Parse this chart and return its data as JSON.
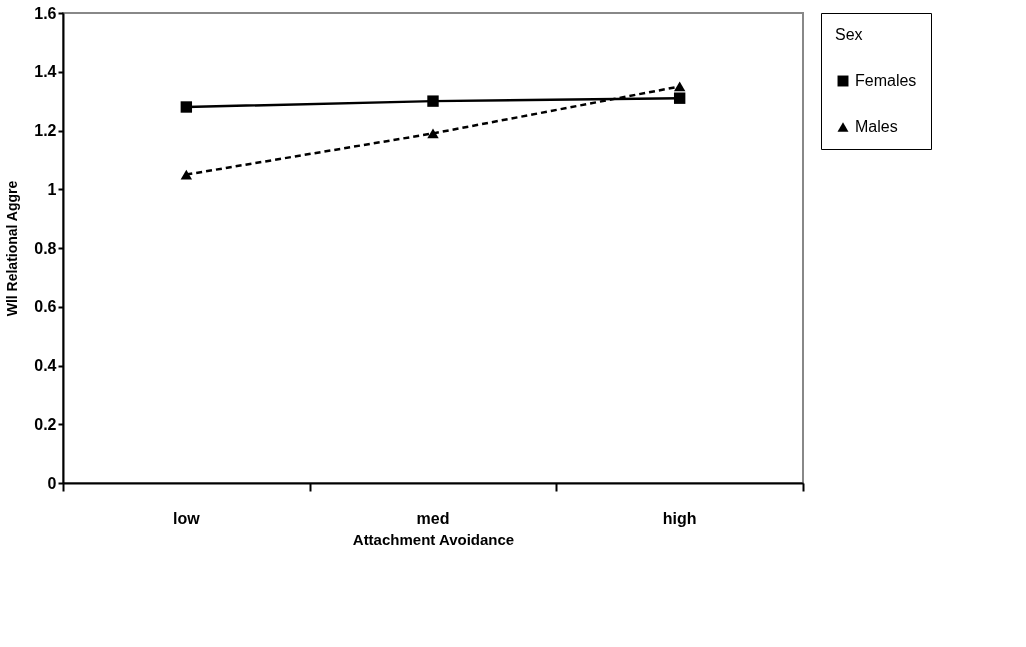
{
  "chart_data": {
    "type": "line",
    "xlabel": "Attachment Avoidance",
    "ylabel": "Wll Relational Aggre",
    "legend_title": "Sex",
    "categories": [
      "low",
      "med",
      "high"
    ],
    "series": [
      {
        "name": "Females",
        "color": "#000000",
        "values": [
          1.28,
          1.3,
          1.31
        ],
        "marker": "square",
        "line_style": "solid"
      },
      {
        "name": "Males",
        "color": "#000000",
        "values": [
          1.05,
          1.19,
          1.35
        ],
        "marker": "triangle",
        "line_style": "dashed"
      }
    ],
    "ylim": [
      0,
      1.6
    ],
    "yticks": [
      0,
      0.2,
      0.4,
      0.6,
      0.8,
      1,
      1.2,
      1.4,
      1.6
    ],
    "grid": false,
    "legend": "right"
  }
}
